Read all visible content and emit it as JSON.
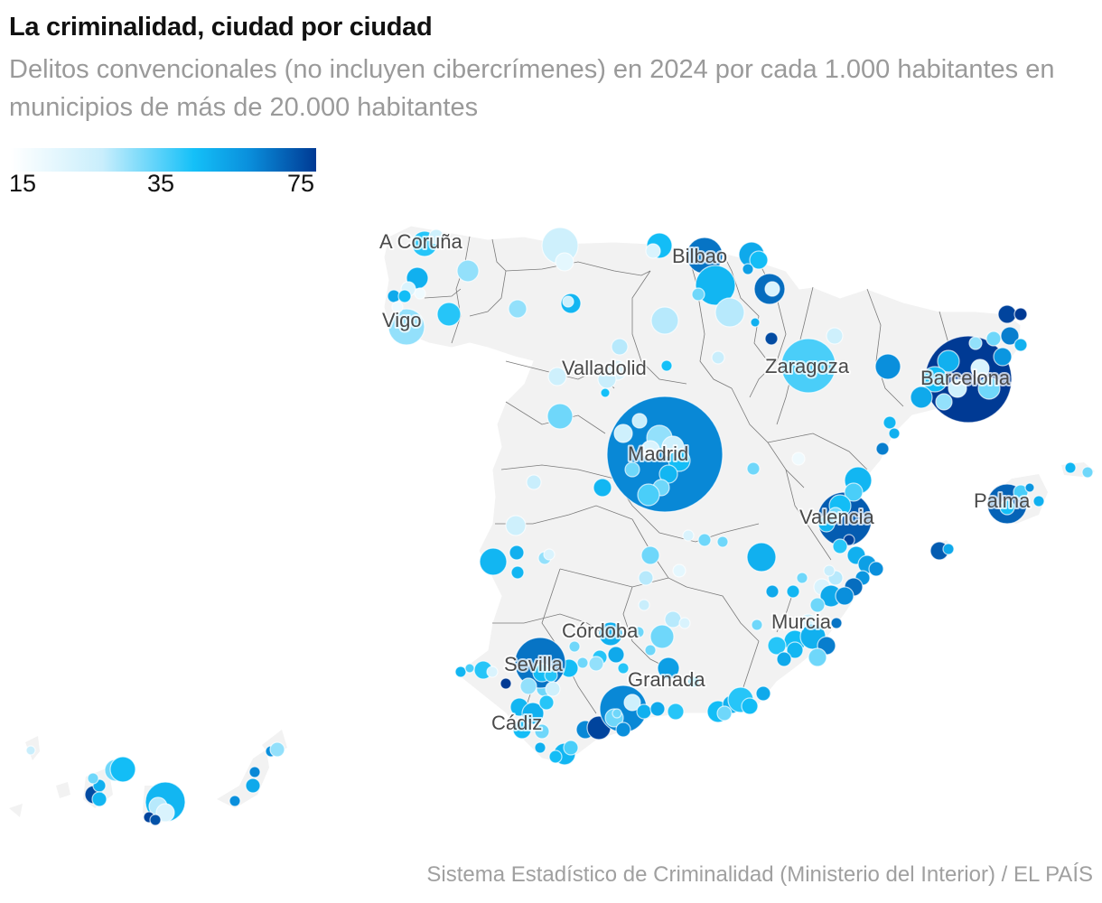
{
  "header": {
    "title": "La criminalidad, ciudad por ciudad",
    "subtitle": "Delitos convencionales (no incluyen cibercrímenes) en 2024 por cada 1.000 habitantes en municipios de más de 20.000 habitantes"
  },
  "legend": {
    "ticks": [
      "15",
      "35",
      "75"
    ],
    "min": 15,
    "mid": 35,
    "max": 75,
    "colors": [
      "#ffffff",
      "#c9eefc",
      "#14c0f8",
      "#0a8fdc",
      "#003a94"
    ]
  },
  "source": "Sistema Estadístico de Criminalidad (Ministerio del Interior) / EL PAÍS",
  "chart_data": {
    "type": "bubble-map",
    "title": "La criminalidad, ciudad por ciudad",
    "metric": "Delitos convencionales por cada 1.000 habitantes (2024)",
    "color_scale": {
      "min": 15,
      "mid": 35,
      "max": 75
    },
    "size_encodes": "población / número de delitos",
    "labeled_cities": [
      {
        "name": "A Coruña",
        "value": 35
      },
      {
        "name": "Vigo",
        "value": 30
      },
      {
        "name": "Bilbao",
        "value": 55
      },
      {
        "name": "Valladolid",
        "value": 30
      },
      {
        "name": "Zaragoza",
        "value": 38
      },
      {
        "name": "Barcelona",
        "value": 75
      },
      {
        "name": "Madrid",
        "value": 55
      },
      {
        "name": "Valencia",
        "value": 62
      },
      {
        "name": "Palma",
        "value": 65
      },
      {
        "name": "Murcia",
        "value": 40
      },
      {
        "name": "Córdoba",
        "value": 42
      },
      {
        "name": "Sevilla",
        "value": 58
      },
      {
        "name": "Granada",
        "value": 45
      },
      {
        "name": "Cádiz",
        "value": 40
      }
    ]
  },
  "map": {
    "cities": [
      {
        "name": "A Coruña",
        "lon": 0.0
      },
      {
        "name": "Vigo"
      },
      {
        "name": "Bilbao"
      },
      {
        "name": "Valladolid"
      },
      {
        "name": "Zaragoza"
      },
      {
        "name": "Barcelona"
      },
      {
        "name": "Madrid"
      },
      {
        "name": "Valencia"
      },
      {
        "name": "Palma"
      },
      {
        "name": "Murcia"
      },
      {
        "name": "Córdoba"
      },
      {
        "name": "Sevilla"
      },
      {
        "name": "Granada"
      },
      {
        "name": "Cádiz"
      }
    ]
  }
}
